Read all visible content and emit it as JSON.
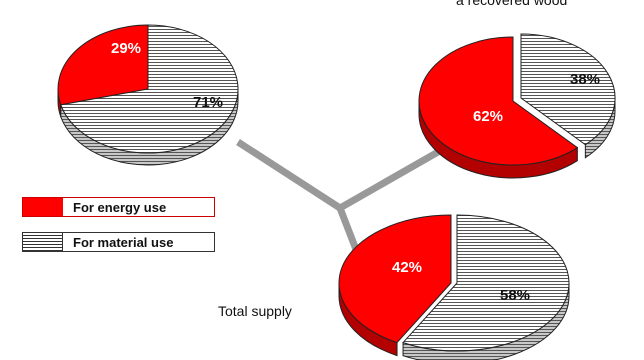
{
  "chart_data": [
    {
      "type": "pie",
      "name": "",
      "slices": [
        {
          "label": "For energy use",
          "value": 29,
          "display": "29%"
        },
        {
          "label": "For material use",
          "value": 71,
          "display": "71%"
        }
      ]
    },
    {
      "type": "pie",
      "name": "a recovered wood",
      "slices": [
        {
          "label": "For energy use",
          "value": 62,
          "display": "62%"
        },
        {
          "label": "For material use",
          "value": 38,
          "display": "38%"
        }
      ]
    },
    {
      "type": "pie",
      "name": "Total supply",
      "slices": [
        {
          "label": "For energy use",
          "value": 42,
          "display": "42%"
        },
        {
          "label": "For material use",
          "value": 58,
          "display": "58%"
        }
      ]
    }
  ],
  "legend": {
    "energy": {
      "label": "For energy use",
      "color": "#ff0000"
    },
    "material": {
      "label": "For material use",
      "color": "#ffffff",
      "pattern": "horizontal-hatch"
    }
  },
  "labels": {
    "recovered": "a recovered wood",
    "total": "Total supply"
  }
}
